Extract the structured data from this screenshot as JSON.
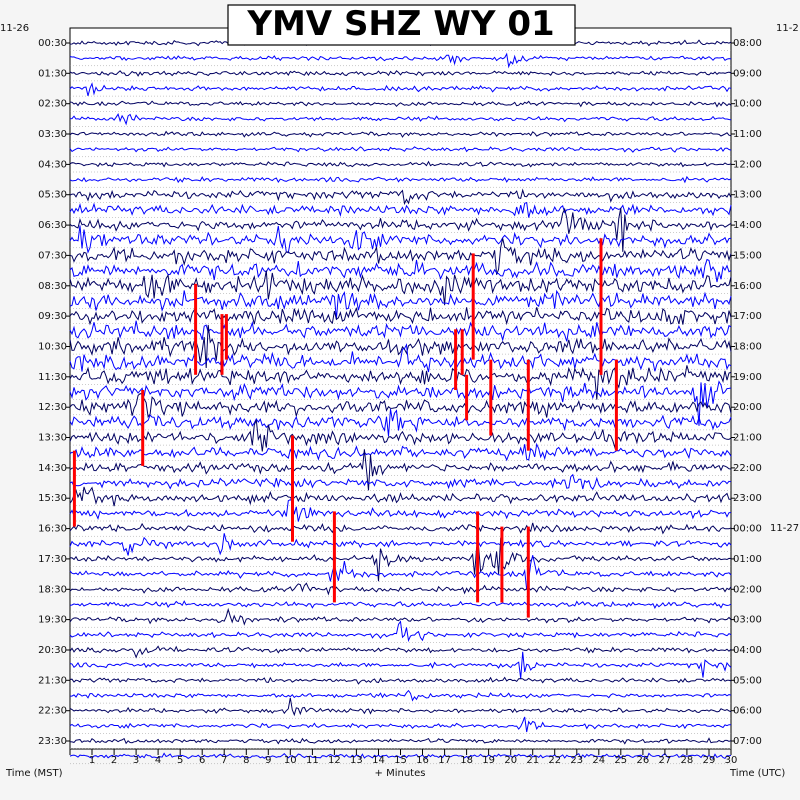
{
  "chart_data": {
    "type": "line",
    "title": "YMV SHZ WY 01",
    "xlabel": "+ Minutes",
    "left_axis_label": "Time (MST)",
    "right_axis_label": "Time (UTC)",
    "left_date_label": "11-26",
    "right_date_label": "11-2",
    "right_date_label_2": "11-27",
    "x_ticks": [
      "1",
      "2",
      "3",
      "4",
      "5",
      "6",
      "7",
      "8",
      "9",
      "10",
      "11",
      "12",
      "13",
      "14",
      "15",
      "16",
      "17",
      "18",
      "19",
      "20",
      "21",
      "22",
      "23",
      "24",
      "25",
      "26",
      "27",
      "28",
      "29",
      "30"
    ],
    "xlim": [
      0,
      30
    ],
    "left_hour_labels": [
      "00:30",
      "01:30",
      "02:30",
      "03:30",
      "04:30",
      "05:30",
      "06:30",
      "07:30",
      "08:30",
      "09:30",
      "10:30",
      "11:30",
      "12:30",
      "13:30",
      "14:30",
      "15:30",
      "16:30",
      "17:30",
      "18:30",
      "19:30",
      "20:30",
      "21:30",
      "22:30",
      "23:30"
    ],
    "right_hour_labels": [
      "08:00",
      "09:00",
      "10:00",
      "11:00",
      "12:00",
      "13:00",
      "14:00",
      "15:00",
      "16:00",
      "17:00",
      "18:00",
      "19:00",
      "20:00",
      "21:00",
      "22:00",
      "23:00",
      "00:00",
      "01:00",
      "02:00",
      "03:00",
      "04:00",
      "05:00",
      "06:00",
      "07:00"
    ],
    "trace_colors": [
      "#000060",
      "#0000ff"
    ],
    "clip_color": "#ff0000",
    "row_count": 48,
    "row_activity": [
      0.12,
      0.12,
      0.14,
      0.16,
      0.12,
      0.12,
      0.12,
      0.12,
      0.12,
      0.16,
      0.45,
      0.55,
      0.6,
      0.7,
      0.9,
      1.0,
      1.0,
      1.0,
      1.0,
      1.0,
      1.0,
      1.0,
      1.0,
      0.9,
      0.85,
      0.8,
      0.7,
      0.6,
      0.55,
      0.5,
      0.45,
      0.4,
      0.32,
      0.28,
      0.25,
      0.22,
      0.22,
      0.2,
      0.2,
      0.18,
      0.18,
      0.16,
      0.16,
      0.15,
      0.14,
      0.14,
      0.14,
      0.14
    ],
    "events": [
      {
        "row": 1,
        "minute": 17.2,
        "amp": 2.2
      },
      {
        "row": 1,
        "minute": 20.0,
        "amp": 2.0
      },
      {
        "row": 3,
        "minute": 0.8,
        "amp": 2.0
      },
      {
        "row": 5,
        "minute": 2.2,
        "amp": 1.5
      },
      {
        "row": 10,
        "minute": 15.2,
        "amp": 2.0
      },
      {
        "row": 11,
        "minute": 20.3,
        "amp": 4.0
      },
      {
        "row": 12,
        "minute": 22.5,
        "amp": 5.0
      },
      {
        "row": 12,
        "minute": 25.0,
        "amp": 4.0
      },
      {
        "row": 13,
        "minute": 0.5,
        "amp": 4.0
      },
      {
        "row": 13,
        "minute": 9.5,
        "amp": 5.0
      },
      {
        "row": 13,
        "minute": 13.0,
        "amp": 4.0
      },
      {
        "row": 14,
        "minute": 19.4,
        "amp": 5.0
      },
      {
        "row": 15,
        "minute": 28.8,
        "amp": 5.0
      },
      {
        "row": 16,
        "minute": 3.5,
        "amp": 4.0
      },
      {
        "row": 16,
        "minute": 9.0,
        "amp": 4.0
      },
      {
        "row": 16,
        "minute": 17.0,
        "amp": 4.0
      },
      {
        "row": 17,
        "minute": 12.0,
        "amp": 5.0
      },
      {
        "row": 18,
        "minute": 27.0,
        "amp": 4.0
      },
      {
        "row": 20,
        "minute": 6.0,
        "amp": 5.0
      },
      {
        "row": 21,
        "minute": 15.0,
        "amp": 4.0
      },
      {
        "row": 22,
        "minute": 24.0,
        "amp": 6.0
      },
      {
        "row": 23,
        "minute": 28.5,
        "amp": 6.0
      },
      {
        "row": 24,
        "minute": 3.0,
        "amp": 5.0
      },
      {
        "row": 25,
        "minute": 14.5,
        "amp": 5.0
      },
      {
        "row": 26,
        "minute": 8.5,
        "amp": 5.0
      },
      {
        "row": 27,
        "minute": 20.8,
        "amp": 5.0
      },
      {
        "row": 28,
        "minute": 13.5,
        "amp": 4.0
      },
      {
        "row": 29,
        "minute": 22.8,
        "amp": 6.0
      },
      {
        "row": 30,
        "minute": 0.5,
        "amp": 4.0
      },
      {
        "row": 31,
        "minute": 10.0,
        "amp": 4.0
      },
      {
        "row": 33,
        "minute": 2.5,
        "amp": 3.0
      },
      {
        "row": 33,
        "minute": 6.8,
        "amp": 3.0
      },
      {
        "row": 34,
        "minute": 14.0,
        "amp": 3.5
      },
      {
        "row": 34,
        "minute": 18.5,
        "amp": 6.0
      },
      {
        "row": 34,
        "minute": 19.5,
        "amp": 6.0
      },
      {
        "row": 35,
        "minute": 20.8,
        "amp": 5.0
      },
      {
        "row": 35,
        "minute": 12.0,
        "amp": 5.0
      },
      {
        "row": 36,
        "minute": 10.5,
        "amp": 3.0
      },
      {
        "row": 38,
        "minute": 7.0,
        "amp": 3.0
      },
      {
        "row": 39,
        "minute": 15.0,
        "amp": 3.0
      },
      {
        "row": 40,
        "minute": 3.0,
        "amp": 2.5
      },
      {
        "row": 41,
        "minute": 20.5,
        "amp": 3.0
      },
      {
        "row": 41,
        "minute": 28.8,
        "amp": 3.0
      },
      {
        "row": 43,
        "minute": 15.5,
        "amp": 2.5
      },
      {
        "row": 44,
        "minute": 10.0,
        "amp": 2.0
      },
      {
        "row": 45,
        "minute": 20.5,
        "amp": 2.0
      }
    ],
    "clipped": [
      {
        "row": 16,
        "minute": 5.7,
        "len": 6
      },
      {
        "row": 18,
        "minute": 6.9,
        "len": 4
      },
      {
        "row": 18,
        "minute": 7.1,
        "len": 3
      },
      {
        "row": 13,
        "minute": 24.1,
        "len": 9
      },
      {
        "row": 14,
        "minute": 18.3,
        "len": 7
      },
      {
        "row": 19,
        "minute": 17.5,
        "len": 4
      },
      {
        "row": 19,
        "minute": 17.8,
        "len": 3
      },
      {
        "row": 21,
        "minute": 19.1,
        "len": 5
      },
      {
        "row": 21,
        "minute": 20.8,
        "len": 6
      },
      {
        "row": 21,
        "minute": 24.8,
        "len": 6
      },
      {
        "row": 22,
        "minute": 18.0,
        "len": 3
      },
      {
        "row": 23,
        "minute": 3.3,
        "len": 5
      },
      {
        "row": 27,
        "minute": 0.2,
        "len": 5
      },
      {
        "row": 26,
        "minute": 10.1,
        "len": 7
      },
      {
        "row": 31,
        "minute": 12.0,
        "len": 6
      },
      {
        "row": 31,
        "minute": 18.5,
        "len": 6
      },
      {
        "row": 32,
        "minute": 19.6,
        "len": 5
      },
      {
        "row": 32,
        "minute": 20.8,
        "len": 6
      }
    ]
  }
}
